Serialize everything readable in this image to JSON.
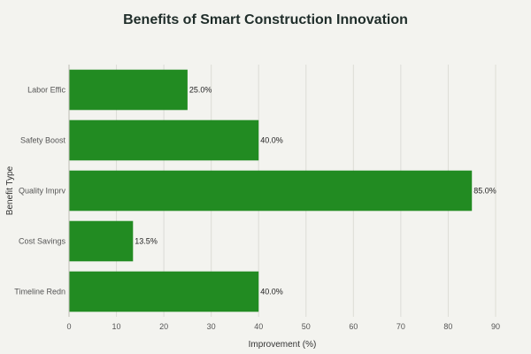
{
  "chart_data": {
    "type": "bar",
    "orientation": "horizontal",
    "title": "Benefits of Smart Construction Innovation",
    "xlabel": "Improvement (%)",
    "ylabel": "Benefit Type",
    "categories": [
      "Labor Effic",
      "Safety Boost",
      "Quality Imprv",
      "Cost Savings",
      "Timeline Redn"
    ],
    "values": [
      25.0,
      40.0,
      85.0,
      13.5,
      40.0
    ],
    "data_labels": [
      "25.0%",
      "40.0%",
      "85.0%",
      "13.5%",
      "40.0%"
    ],
    "xlim": [
      0,
      90
    ],
    "xticks": [
      0,
      10,
      20,
      30,
      40,
      50,
      60,
      70,
      80,
      90
    ],
    "grid": true,
    "bar_color": "#228b22"
  }
}
